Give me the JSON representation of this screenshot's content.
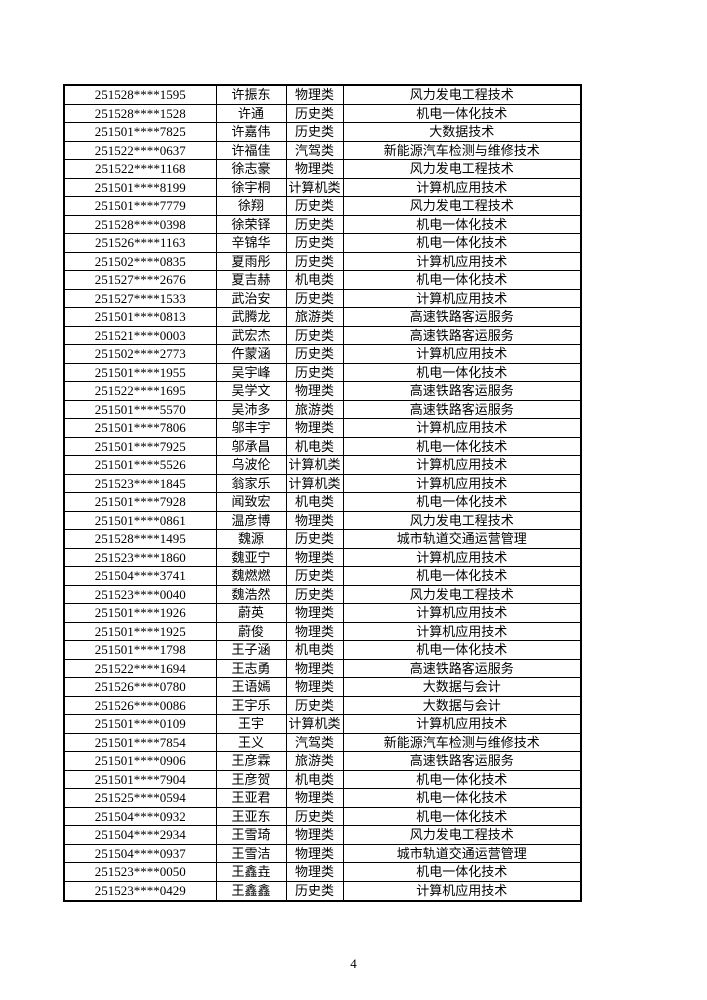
{
  "document": {
    "page_number": "4"
  },
  "table": {
    "rows": [
      [
        "251528****1595",
        "许振东",
        "物理类",
        "风力发电工程技术"
      ],
      [
        "251528****1528",
        "许通",
        "历史类",
        "机电一体化技术"
      ],
      [
        "251501****7825",
        "许嘉伟",
        "历史类",
        "大数据技术"
      ],
      [
        "251522****0637",
        "许福佳",
        "汽驾类",
        "新能源汽车检测与维修技术"
      ],
      [
        "251522****1168",
        "徐志豪",
        "物理类",
        "风力发电工程技术"
      ],
      [
        "251501****8199",
        "徐宇桐",
        "计算机类",
        "计算机应用技术"
      ],
      [
        "251501****7779",
        "徐翔",
        "历史类",
        "风力发电工程技术"
      ],
      [
        "251528****0398",
        "徐荣铎",
        "历史类",
        "机电一体化技术"
      ],
      [
        "251526****1163",
        "辛锦华",
        "历史类",
        "机电一体化技术"
      ],
      [
        "251502****0835",
        "夏雨彤",
        "历史类",
        "计算机应用技术"
      ],
      [
        "251527****2676",
        "夏吉赫",
        "机电类",
        "机电一体化技术"
      ],
      [
        "251527****1533",
        "武治安",
        "历史类",
        "计算机应用技术"
      ],
      [
        "251501****0813",
        "武腾龙",
        "旅游类",
        "高速铁路客运服务"
      ],
      [
        "251521****0003",
        "武宏杰",
        "历史类",
        "高速铁路客运服务"
      ],
      [
        "251502****2773",
        "仵蒙涵",
        "历史类",
        "计算机应用技术"
      ],
      [
        "251501****1955",
        "吴宇峰",
        "历史类",
        "机电一体化技术"
      ],
      [
        "251522****1695",
        "吴学文",
        "物理类",
        "高速铁路客运服务"
      ],
      [
        "251501****5570",
        "吴沛多",
        "旅游类",
        "高速铁路客运服务"
      ],
      [
        "251501****7806",
        "邬丰宇",
        "物理类",
        "计算机应用技术"
      ],
      [
        "251501****7925",
        "邬承昌",
        "机电类",
        "机电一体化技术"
      ],
      [
        "251501****5526",
        "乌波伦",
        "计算机类",
        "计算机应用技术"
      ],
      [
        "251523****1845",
        "翁家乐",
        "计算机类",
        "计算机应用技术"
      ],
      [
        "251501****7928",
        "闻致宏",
        "机电类",
        "机电一体化技术"
      ],
      [
        "251501****0861",
        "温彦博",
        "物理类",
        "风力发电工程技术"
      ],
      [
        "251528****1495",
        "魏源",
        "历史类",
        "城市轨道交通运营管理"
      ],
      [
        "251523****1860",
        "魏亚宁",
        "物理类",
        "计算机应用技术"
      ],
      [
        "251504****3741",
        "魏燃燃",
        "历史类",
        "机电一体化技术"
      ],
      [
        "251523****0040",
        "魏浩然",
        "历史类",
        "风力发电工程技术"
      ],
      [
        "251501****1926",
        "蔚英",
        "物理类",
        "计算机应用技术"
      ],
      [
        "251501****1925",
        "蔚俊",
        "物理类",
        "计算机应用技术"
      ],
      [
        "251501****1798",
        "王子涵",
        "机电类",
        "机电一体化技术"
      ],
      [
        "251522****1694",
        "王志勇",
        "物理类",
        "高速铁路客运服务"
      ],
      [
        "251526****0780",
        "王语嫣",
        "物理类",
        "大数据与会计"
      ],
      [
        "251526****0086",
        "王宇乐",
        "历史类",
        "大数据与会计"
      ],
      [
        "251501****0109",
        "王宇",
        "计算机类",
        "计算机应用技术"
      ],
      [
        "251501****7854",
        "王义",
        "汽驾类",
        "新能源汽车检测与维修技术"
      ],
      [
        "251501****0906",
        "王彦霖",
        "旅游类",
        "高速铁路客运服务"
      ],
      [
        "251501****7904",
        "王彦贺",
        "机电类",
        "机电一体化技术"
      ],
      [
        "251525****0594",
        "王亚君",
        "物理类",
        "机电一体化技术"
      ],
      [
        "251504****0932",
        "王亚东",
        "历史类",
        "机电一体化技术"
      ],
      [
        "251504****2934",
        "王雪琦",
        "物理类",
        "风力发电工程技术"
      ],
      [
        "251504****0937",
        "王雪洁",
        "物理类",
        "城市轨道交通运营管理"
      ],
      [
        "251523****0050",
        "王鑫垚",
        "物理类",
        "机电一体化技术"
      ],
      [
        "251523****0429",
        "王鑫鑫",
        "历史类",
        "计算机应用技术"
      ]
    ]
  }
}
